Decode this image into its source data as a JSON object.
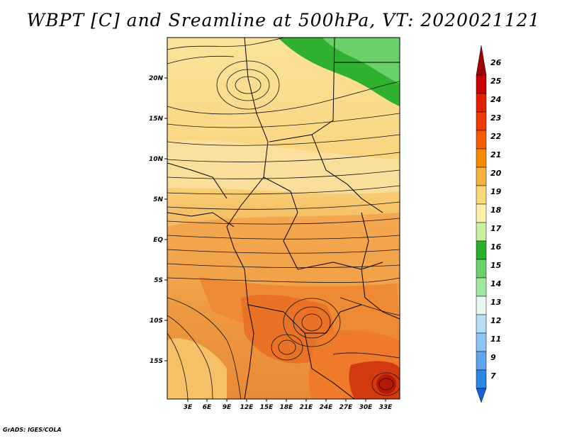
{
  "title": "WBPT [C] and Sreamline at 500hPa, VT: 2020021121",
  "credit": "GrADS: IGES/COLA",
  "map": {
    "lat_labels": [
      "20N",
      "15N",
      "10N",
      "5N",
      "EQ",
      "5S",
      "10S",
      "15S"
    ],
    "lon_labels": [
      "3E",
      "6E",
      "9E",
      "12E",
      "15E",
      "18E",
      "21E",
      "24E",
      "27E",
      "30E",
      "33E"
    ]
  },
  "colorbar": {
    "labels": [
      "26",
      "25",
      "24",
      "23",
      "22",
      "21",
      "20",
      "19",
      "18",
      "17",
      "16",
      "15",
      "14",
      "13",
      "12",
      "11",
      "9",
      "7"
    ],
    "colors": [
      "#a00000",
      "#c80000",
      "#e12000",
      "#ee3a00",
      "#f45a00",
      "#f78a00",
      "#f8b040",
      "#fbd67a",
      "#fff0a8",
      "#c8f0a0",
      "#2cb02c",
      "#6ad06a",
      "#a0e8a0",
      "#e6f8f0",
      "#b8def8",
      "#8cc4f4",
      "#5ea6ee",
      "#2e86e4",
      "#1060d8"
    ]
  }
}
